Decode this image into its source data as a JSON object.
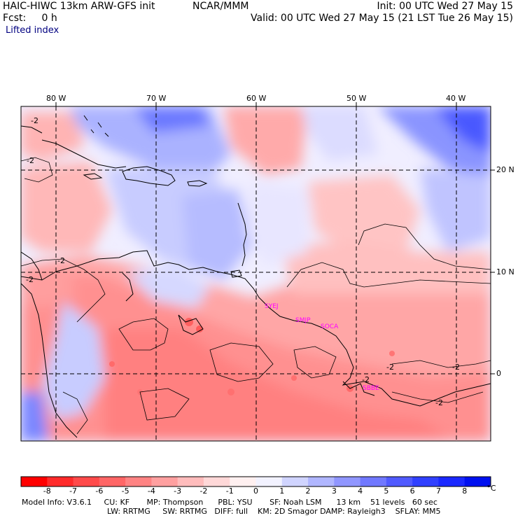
{
  "header": {
    "model": "HAIC-HIWC 13km ARW-GFS init",
    "org": "NCAR/MMM",
    "forecast": "Fcst:     0 h",
    "field": "Lifted index",
    "init": "Init: 00 UTC Wed 27 May 15",
    "valid": "Valid: 00 UTC Wed 27 May 15 (21 LST Tue 26 May 15)"
  },
  "map": {
    "lon_labels": [
      "80 W",
      "70 W",
      "60 W",
      "50 W",
      "40 W"
    ],
    "lat_labels": [
      "20 N",
      "10 N",
      "0"
    ],
    "contour_labels": [
      "-2",
      "-2",
      "-2",
      "-2",
      "-2",
      "-2",
      "-2",
      "-2"
    ],
    "stations": [
      "SYEJ",
      "SMJP",
      "SOCA",
      "SBBE"
    ],
    "station_color": "#ff00ff"
  },
  "colorbar": {
    "values": [
      "-8",
      "-7",
      "-6",
      "-5",
      "-4",
      "-3",
      "-2",
      "-1",
      "0",
      "1",
      "2",
      "3",
      "4",
      "5",
      "6",
      "7",
      "8"
    ],
    "unit": "°C",
    "colors": [
      "#ff0000",
      "#ff2a2a",
      "#ff4a4a",
      "#ff6666",
      "#ff8383",
      "#ffa0a0",
      "#ffbcbc",
      "#ffd8d8",
      "#fff0f0",
      "#f2f2ff",
      "#d0d4ff",
      "#b0b6ff",
      "#9096ff",
      "#7078ff",
      "#505aff",
      "#3040ff",
      "#1a28ff",
      "#0010f0"
    ]
  },
  "model_info": {
    "line1": "Model Info: V3.6.1     CU: KF       MP: Thompson      PBL: YSU       SF: Noah LSM      13 km    51 levels   60 sec",
    "line2": "LW: RRTMG     SW: RRTMG   DIFF: full    KM: 2D Smagor DAMP: Rayleigh3    SFLAY: MM5"
  }
}
